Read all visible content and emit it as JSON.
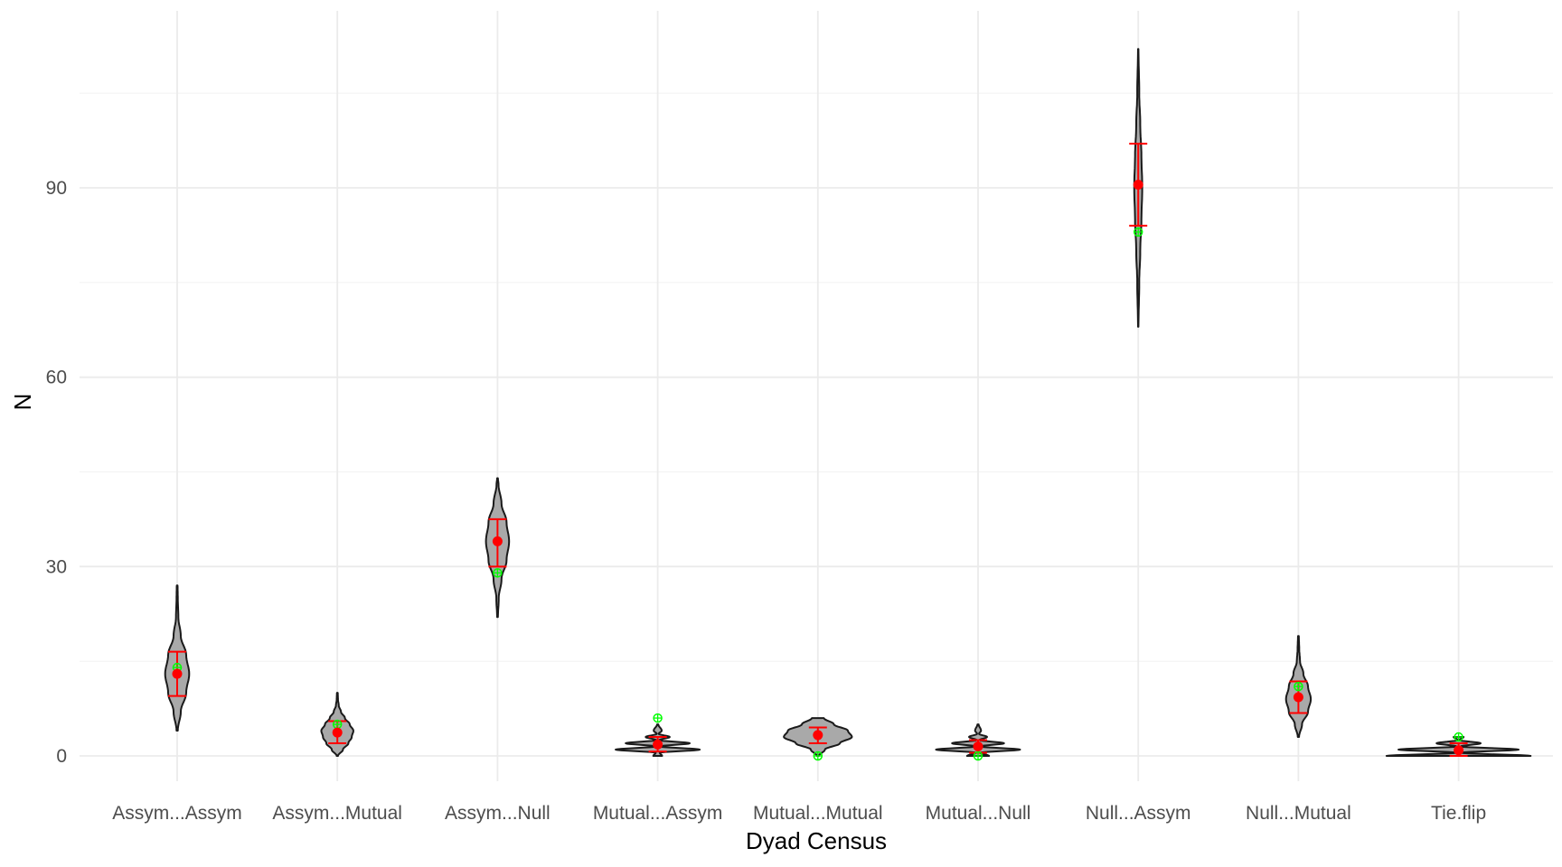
{
  "chart_data": {
    "type": "violin",
    "xlabel": "Dyad Census",
    "ylabel": "N",
    "ylim": [
      -5,
      112
    ],
    "yticks": [
      0,
      30,
      60,
      90
    ],
    "grid": true,
    "categories": [
      "Assym...Assym",
      "Assym...Mutual",
      "Assym...Null",
      "Mutual...Assym",
      "Mutual...Mutual",
      "Mutual...Null",
      "Null...Assym",
      "Null...Mutual",
      "Tie.flip"
    ],
    "series": [
      {
        "category": "Assym...Assym",
        "min": 4,
        "max": 27,
        "mean": 13,
        "lower": 9.5,
        "upper": 16.5,
        "observed": 14,
        "density": [
          [
            4,
            0.03
          ],
          [
            7,
            0.18
          ],
          [
            10,
            0.45
          ],
          [
            13,
            0.6
          ],
          [
            16,
            0.45
          ],
          [
            19,
            0.18
          ],
          [
            22,
            0.06
          ],
          [
            25,
            0.03
          ],
          [
            27,
            0.02
          ]
        ]
      },
      {
        "category": "Assym...Mutual",
        "min": 0,
        "max": 10,
        "mean": 3.7,
        "lower": 2,
        "upper": 5.5,
        "observed": 5,
        "density": [
          [
            0,
            0.03
          ],
          [
            1,
            0.28
          ],
          [
            2,
            0.55
          ],
          [
            3,
            0.72
          ],
          [
            4,
            0.8
          ],
          [
            5,
            0.62
          ],
          [
            6,
            0.38
          ],
          [
            7,
            0.18
          ],
          [
            8,
            0.07
          ],
          [
            9,
            0.03
          ],
          [
            10,
            0.02
          ]
        ]
      },
      {
        "category": "Assym...Null",
        "min": 22,
        "max": 44,
        "mean": 34,
        "lower": 30,
        "upper": 37.5,
        "observed": 29,
        "density": [
          [
            22,
            0.02
          ],
          [
            25,
            0.06
          ],
          [
            28,
            0.2
          ],
          [
            31,
            0.45
          ],
          [
            34,
            0.58
          ],
          [
            37,
            0.45
          ],
          [
            40,
            0.2
          ],
          [
            43,
            0.05
          ],
          [
            44,
            0.02
          ]
        ]
      },
      {
        "category": "Mutual...Assym",
        "min": 0,
        "max": 5,
        "mean": 1.8,
        "lower": 0.7,
        "upper": 3,
        "observed": 6,
        "density": [
          [
            0,
            0.22
          ],
          [
            0.5,
            0.1
          ],
          [
            1,
            2.1
          ],
          [
            1.5,
            0.1
          ],
          [
            2,
            1.6
          ],
          [
            2.5,
            0.08
          ],
          [
            3,
            0.6
          ],
          [
            3.5,
            0.05
          ],
          [
            4,
            0.2
          ],
          [
            5,
            0.03
          ]
        ]
      },
      {
        "category": "Mutual...Mutual",
        "min": 0,
        "max": 6,
        "mean": 3.3,
        "lower": 2,
        "upper": 4.5,
        "observed": 0,
        "density": [
          [
            0,
            0.05
          ],
          [
            1,
            0.35
          ],
          [
            2,
            1.1
          ],
          [
            3,
            1.7
          ],
          [
            4,
            1.5
          ],
          [
            5,
            0.8
          ],
          [
            6,
            0.3
          ]
        ]
      },
      {
        "category": "Mutual...Null",
        "min": 0,
        "max": 5,
        "mean": 1.5,
        "lower": 0.5,
        "upper": 2.5,
        "observed": 0,
        "density": [
          [
            0,
            0.55
          ],
          [
            0.5,
            0.1
          ],
          [
            1,
            2.1
          ],
          [
            1.5,
            0.1
          ],
          [
            2,
            1.3
          ],
          [
            2.5,
            0.07
          ],
          [
            3,
            0.45
          ],
          [
            3.5,
            0.05
          ],
          [
            4,
            0.15
          ],
          [
            5,
            0.03
          ]
        ]
      },
      {
        "category": "Null...Assym",
        "min": 68,
        "max": 112,
        "mean": 90.5,
        "lower": 84,
        "upper": 97,
        "observed": 83,
        "density": [
          [
            68,
            0.01
          ],
          [
            75,
            0.05
          ],
          [
            80,
            0.1
          ],
          [
            85,
            0.16
          ],
          [
            90,
            0.2
          ],
          [
            95,
            0.16
          ],
          [
            100,
            0.1
          ],
          [
            105,
            0.05
          ],
          [
            112,
            0.01
          ]
        ]
      },
      {
        "category": "Null...Mutual",
        "min": 3,
        "max": 19,
        "mean": 9.3,
        "lower": 6.8,
        "upper": 11.8,
        "observed": 11,
        "density": [
          [
            3,
            0.03
          ],
          [
            5,
            0.18
          ],
          [
            7,
            0.48
          ],
          [
            9,
            0.62
          ],
          [
            11,
            0.48
          ],
          [
            13,
            0.25
          ],
          [
            15,
            0.08
          ],
          [
            17,
            0.04
          ],
          [
            19,
            0.02
          ]
        ]
      },
      {
        "category": "Tie.flip",
        "min": 0,
        "max": 3,
        "mean": 0.9,
        "lower": 0,
        "upper": 2,
        "observed": 3,
        "density": [
          [
            0,
            3.6
          ],
          [
            0.5,
            0.1
          ],
          [
            1,
            3.0
          ],
          [
            1.5,
            0.1
          ],
          [
            2,
            1.1
          ],
          [
            2.5,
            0.05
          ],
          [
            3,
            0.25
          ]
        ]
      }
    ],
    "colors": {
      "violin_fill": "#a9a9a9",
      "violin_stroke": "#1a1a1a",
      "mean_point": "#ff0000",
      "errorbar": "#ff0000",
      "observed_point": "#00ff00",
      "grid_major": "#ebebeb",
      "grid_minor": "#f4f4f4"
    }
  }
}
